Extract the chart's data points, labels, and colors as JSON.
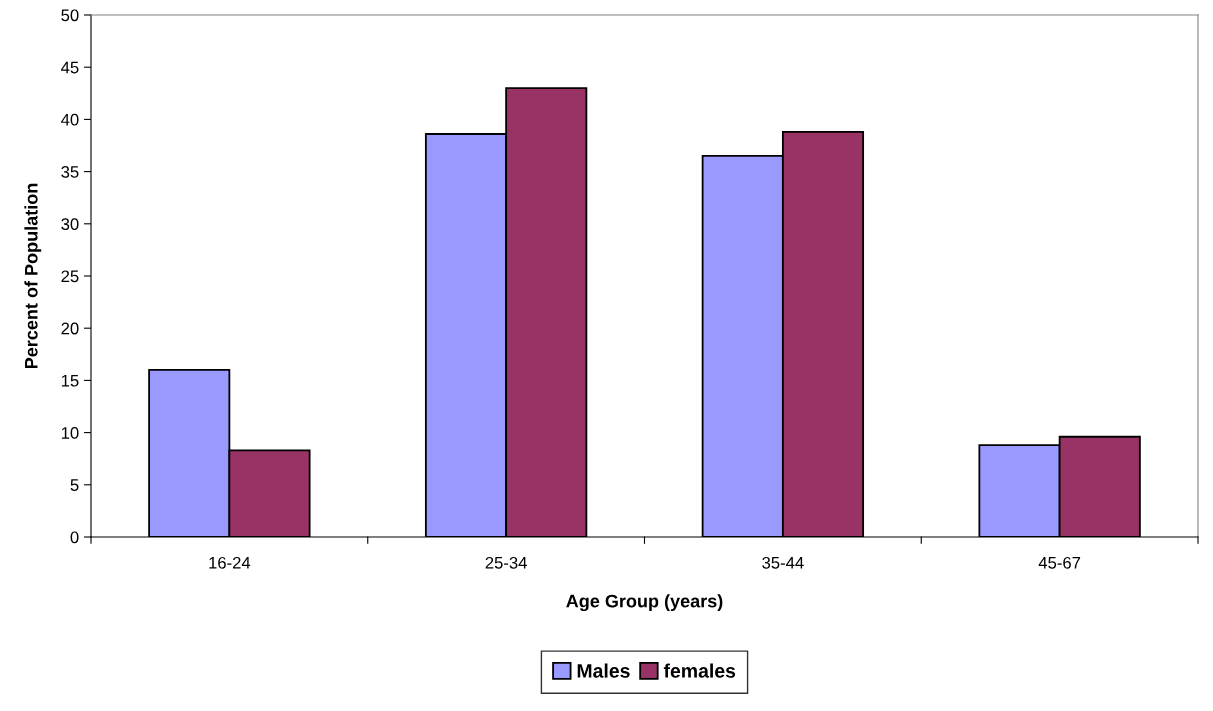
{
  "chart_data": {
    "type": "bar",
    "xlabel": "Age Group (years)",
    "ylabel": "Percent of Population",
    "categories": [
      "16-24",
      "25-34",
      "35-44",
      "45-67"
    ],
    "series": [
      {
        "name": "Males",
        "color": "#9999ff",
        "values": [
          16.0,
          38.6,
          36.5,
          8.8
        ]
      },
      {
        "name": "females",
        "color": "#993366",
        "values": [
          8.3,
          43.0,
          38.8,
          9.6
        ]
      }
    ],
    "ylim": [
      0,
      50
    ],
    "yticks": [
      0,
      5,
      10,
      15,
      20,
      25,
      30,
      35,
      40,
      45,
      50
    ],
    "grid": false,
    "legend": "bottom"
  }
}
